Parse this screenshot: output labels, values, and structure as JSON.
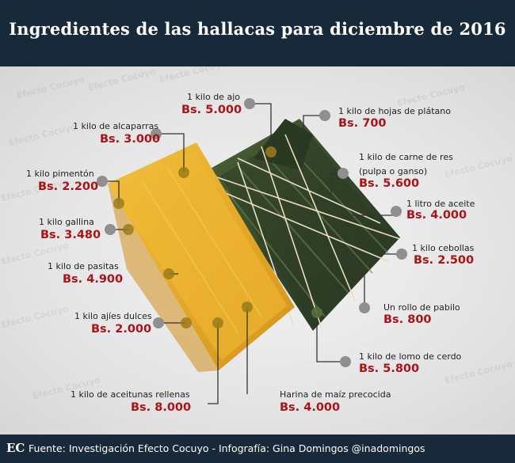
{
  "title": "Ingredientes  de las hallacas para diciembre de 2016",
  "watermark": "Efecto Cocuyo",
  "footer": {
    "logo": "EC",
    "text": "Fuente: Investigación Efecto Cocuyo - Infografía: Gina Domingos @inadomingos"
  },
  "colors": {
    "header": "#182a3a",
    "price": "#a81418",
    "dot": "#8f8f8f",
    "dot_on_item": "#9a7d1a",
    "connector": "#333333",
    "hallaca_yellow": "#e8b02c",
    "banana_leaf": "#3c4f2a"
  },
  "ingredients": [
    {
      "name": "1 kilo de ajo",
      "price": "Bs. 5.000"
    },
    {
      "name": "1 kilo de alcaparras",
      "price": "Bs. 3.000"
    },
    {
      "name": "1 kilo pimentón",
      "price": "Bs. 2.200"
    },
    {
      "name": "1 kilo gallina",
      "price": "Bs. 3.480"
    },
    {
      "name": "1 kilo de pasitas",
      "price": "Bs. 4.900"
    },
    {
      "name": "1 kilo ajíes dulces",
      "price": "Bs. 2.000"
    },
    {
      "name": "1 kilo de aceitunas rellenas",
      "price": "Bs. 8.000"
    },
    {
      "name": "Harina de maíz precocida",
      "price": "Bs. 4.000"
    },
    {
      "name": "1 kilo de lomo de cerdo",
      "price": "Bs. 5.800"
    },
    {
      "name": "Un rollo de pabilo",
      "price": "Bs. 800"
    },
    {
      "name": "1 kilo cebollas",
      "price": "Bs. 2.500"
    },
    {
      "name": "1 litro de aceite",
      "price": "Bs. 4.000"
    },
    {
      "name": "1 kilo de carne de res",
      "name_line2": "(pulpa o ganso)",
      "price": "Bs. 5.600"
    },
    {
      "name": "1 kilo de hojas de plátano",
      "price": "Bs. 700"
    }
  ]
}
